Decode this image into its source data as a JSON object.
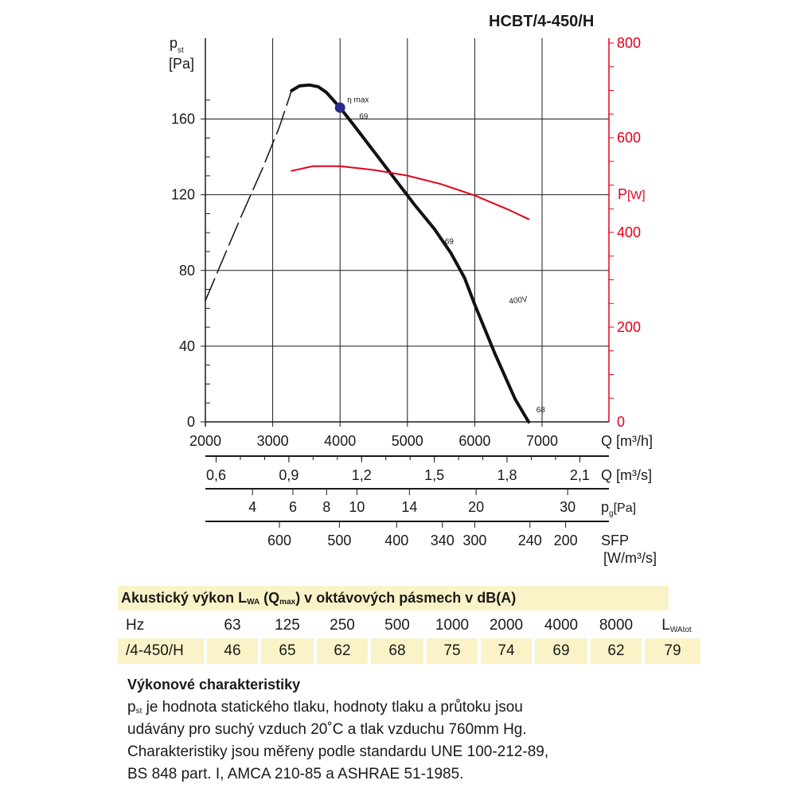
{
  "header": {
    "model": "HCBT/4-450/H"
  },
  "chart_data": {
    "type": "line",
    "title": "HCBT/4-450/H",
    "x_axis": {
      "label": "Q [m³/h]",
      "range": [
        2000,
        7000
      ],
      "ticks": [
        2000,
        3000,
        4000,
        5000,
        6000,
        7000
      ]
    },
    "y_left": {
      "label_main": "p",
      "label_sub": "st",
      "unit": "[Pa]",
      "range": [
        0,
        180
      ],
      "ticks": [
        0,
        40,
        80,
        120,
        160
      ]
    },
    "y_right": {
      "label_main": "P",
      "unit": "[W]",
      "range": [
        0,
        800
      ],
      "ticks": [
        0,
        200,
        400,
        600,
        800
      ],
      "color": "#e3001b"
    },
    "series": [
      {
        "name": "",
        "role": "static pressure (stable range)",
        "axis": "left",
        "style": "solid",
        "color": "#111111",
        "x": [
          3280,
          3400,
          3550,
          3680,
          3800,
          4000,
          4200,
          4500,
          4800,
          5100,
          5400,
          5650,
          5850,
          6000,
          6150,
          6300,
          6450,
          6600,
          6800
        ],
        "y": [
          175,
          177.5,
          178,
          177,
          174,
          166,
          157,
          143,
          129,
          115,
          102,
          89,
          76,
          62,
          49,
          36,
          24,
          12,
          0
        ]
      },
      {
        "name": "",
        "role": "static pressure (unstable range)",
        "axis": "left",
        "style": "dashed",
        "color": "#111111",
        "x": [
          2000,
          2250,
          2550,
          2850,
          3100,
          3280
        ],
        "y": [
          64,
          85,
          110,
          134,
          156,
          175
        ]
      },
      {
        "name": "400V",
        "role": "power",
        "axis": "right",
        "style": "solid",
        "color": "#e3001b",
        "x": [
          3280,
          3600,
          4000,
          4500,
          5000,
          5500,
          6000,
          6500,
          6800
        ],
        "y": [
          530,
          540,
          540,
          532,
          520,
          502,
          478,
          448,
          428
        ]
      }
    ],
    "annotations": [
      {
        "text": "η max",
        "x": 4000,
        "y": 166,
        "marker": "dot",
        "color": "#2a2a8a"
      },
      {
        "text": "69",
        "x": 4350,
        "y": 160
      },
      {
        "text": "69",
        "x": 5620,
        "y": 94
      },
      {
        "text": "68",
        "x": 6980,
        "y": 5
      },
      {
        "text": "400V",
        "x": 6650,
        "y": 63,
        "color": "#e3001b"
      }
    ],
    "secondary_scales": [
      {
        "unit": "Q [m³/s]",
        "ticks": [
          {
            "label": "0,6",
            "q": 2160
          },
          {
            "label": "0,9",
            "q": 3240
          },
          {
            "label": "1,2",
            "q": 4320
          },
          {
            "label": "1,5",
            "q": 5400
          },
          {
            "label": "1,8",
            "q": 6480
          },
          {
            "label": "2,1",
            "q": 7560
          }
        ]
      },
      {
        "unit": "p",
        "unit_sub": "g",
        "unit_suffix": "[Pa]",
        "ticks": [
          {
            "label": "4",
            "q": 2700
          },
          {
            "label": "6",
            "q": 3300
          },
          {
            "label": "8",
            "q": 3800
          },
          {
            "label": "10",
            "q": 4250
          },
          {
            "label": "14",
            "q": 5030
          },
          {
            "label": "20",
            "q": 6020
          },
          {
            "label": "30",
            "q": 7380
          }
        ]
      },
      {
        "unit": "SFP",
        "unit2": "[W/m³/s]",
        "ticks": [
          {
            "label": "600",
            "q": 3100
          },
          {
            "label": "500",
            "q": 3990
          },
          {
            "label": "400",
            "q": 4840
          },
          {
            "label": "340",
            "q": 5520
          },
          {
            "label": "300",
            "q": 6000
          },
          {
            "label": "240",
            "q": 6820
          },
          {
            "label": "200",
            "q": 7350
          }
        ]
      }
    ]
  },
  "acoustic": {
    "title_parts": [
      "Akustický výkon L",
      "WA",
      " (Q",
      "max",
      ") v oktávových pásmech v dB(A)"
    ],
    "header": [
      "Hz",
      "63",
      "125",
      "250",
      "500",
      "1000",
      "2000",
      "4000",
      "8000"
    ],
    "total_label": {
      "main": "L",
      "sub": "WAtot"
    },
    "row_label": "/4-450/H",
    "values": [
      "46",
      "65",
      "62",
      "68",
      "75",
      "74",
      "69",
      "62",
      "79"
    ]
  },
  "performance": {
    "title": "Výkonové charakteristiky",
    "line1_sym_main": "p",
    "line1_sym_sub": "st",
    "line1_rest": " je hodnota statického tlaku, hodnoty tlaku a průtoku jsou",
    "line2": "udávány pro suchý vzduch 20˚C a tlak vzduchu 760mm Hg.",
    "line3": "Charakteristiky jsou měřeny podle standardu UNE 100-212-89,",
    "line4": "BS 848 part. I, AMCA 210-85 a ASHRAE 51-1985."
  }
}
